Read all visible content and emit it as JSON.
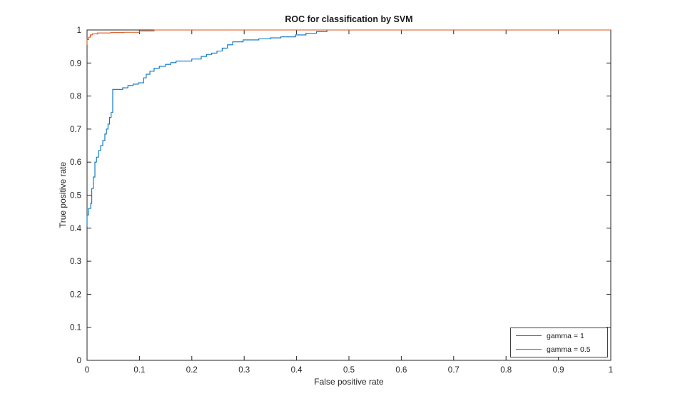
{
  "figure": {
    "background": "#ffffff",
    "axes_color": "#262626",
    "text_color": "#262626"
  },
  "chart_data": {
    "type": "line",
    "title": "ROC for classification by SVM",
    "xlabel": "False positive rate",
    "ylabel": "True positive rate",
    "xlim": [
      0,
      1
    ],
    "ylim": [
      0,
      1
    ],
    "grid": false,
    "x_ticks": [
      0,
      0.1,
      0.2,
      0.3,
      0.4,
      0.5,
      0.6,
      0.7,
      0.8,
      0.9,
      1
    ],
    "x_tick_labels": [
      "0",
      "0.1",
      "0.2",
      "0.3",
      "0.4",
      "0.5",
      "0.6",
      "0.7",
      "0.8",
      "0.9",
      "1"
    ],
    "y_ticks": [
      0,
      0.1,
      0.2,
      0.3,
      0.4,
      0.5,
      0.6,
      0.7,
      0.8,
      0.9,
      1
    ],
    "y_tick_labels": [
      "0",
      "0.1",
      "0.2",
      "0.3",
      "0.4",
      "0.5",
      "0.6",
      "0.7",
      "0.8",
      "0.9",
      "1"
    ],
    "legend": {
      "position": "southeast",
      "entries": [
        "gamma = 1",
        "gamma = 0.5"
      ]
    },
    "series": [
      {
        "name": "gamma = 1",
        "color": "#0072BD",
        "points": [
          [
            0,
            0.405
          ],
          [
            0,
            0.44
          ],
          [
            0.003,
            0.44
          ],
          [
            0.003,
            0.46
          ],
          [
            0.007,
            0.46
          ],
          [
            0.007,
            0.475
          ],
          [
            0.009,
            0.475
          ],
          [
            0.009,
            0.52
          ],
          [
            0.012,
            0.52
          ],
          [
            0.012,
            0.555
          ],
          [
            0.015,
            0.555
          ],
          [
            0.015,
            0.6
          ],
          [
            0.018,
            0.6
          ],
          [
            0.018,
            0.615
          ],
          [
            0.022,
            0.615
          ],
          [
            0.022,
            0.635
          ],
          [
            0.026,
            0.635
          ],
          [
            0.026,
            0.65
          ],
          [
            0.03,
            0.65
          ],
          [
            0.03,
            0.665
          ],
          [
            0.034,
            0.665
          ],
          [
            0.034,
            0.685
          ],
          [
            0.037,
            0.685
          ],
          [
            0.037,
            0.7
          ],
          [
            0.04,
            0.7
          ],
          [
            0.04,
            0.715
          ],
          [
            0.043,
            0.715
          ],
          [
            0.043,
            0.735
          ],
          [
            0.046,
            0.735
          ],
          [
            0.046,
            0.75
          ],
          [
            0.049,
            0.75
          ],
          [
            0.049,
            0.82
          ],
          [
            0.068,
            0.82
          ],
          [
            0.068,
            0.825
          ],
          [
            0.078,
            0.825
          ],
          [
            0.078,
            0.832
          ],
          [
            0.088,
            0.832
          ],
          [
            0.088,
            0.836
          ],
          [
            0.098,
            0.836
          ],
          [
            0.098,
            0.84
          ],
          [
            0.108,
            0.84
          ],
          [
            0.108,
            0.855
          ],
          [
            0.113,
            0.855
          ],
          [
            0.113,
            0.866
          ],
          [
            0.12,
            0.866
          ],
          [
            0.12,
            0.875
          ],
          [
            0.128,
            0.875
          ],
          [
            0.128,
            0.884
          ],
          [
            0.138,
            0.884
          ],
          [
            0.138,
            0.89
          ],
          [
            0.15,
            0.89
          ],
          [
            0.15,
            0.896
          ],
          [
            0.16,
            0.896
          ],
          [
            0.16,
            0.901
          ],
          [
            0.17,
            0.901
          ],
          [
            0.17,
            0.906
          ],
          [
            0.2,
            0.906
          ],
          [
            0.2,
            0.912
          ],
          [
            0.218,
            0.912
          ],
          [
            0.218,
            0.92
          ],
          [
            0.228,
            0.92
          ],
          [
            0.228,
            0.926
          ],
          [
            0.238,
            0.926
          ],
          [
            0.238,
            0.93
          ],
          [
            0.248,
            0.93
          ],
          [
            0.248,
            0.936
          ],
          [
            0.258,
            0.936
          ],
          [
            0.258,
            0.945
          ],
          [
            0.268,
            0.945
          ],
          [
            0.268,
            0.955
          ],
          [
            0.278,
            0.955
          ],
          [
            0.278,
            0.964
          ],
          [
            0.298,
            0.964
          ],
          [
            0.298,
            0.97
          ],
          [
            0.328,
            0.97
          ],
          [
            0.328,
            0.973
          ],
          [
            0.35,
            0.973
          ],
          [
            0.35,
            0.976
          ],
          [
            0.37,
            0.976
          ],
          [
            0.37,
            0.979
          ],
          [
            0.398,
            0.979
          ],
          [
            0.398,
            0.985
          ],
          [
            0.418,
            0.985
          ],
          [
            0.418,
            0.99
          ],
          [
            0.438,
            0.99
          ],
          [
            0.438,
            0.995
          ],
          [
            0.458,
            0.995
          ],
          [
            0.458,
            1
          ],
          [
            1,
            1
          ]
        ]
      },
      {
        "name": "gamma = 0.5",
        "color": "#D95319",
        "points": [
          [
            0,
            0.955
          ],
          [
            0,
            0.971
          ],
          [
            0.003,
            0.971
          ],
          [
            0.003,
            0.978
          ],
          [
            0.006,
            0.978
          ],
          [
            0.006,
            0.985
          ],
          [
            0.01,
            0.985
          ],
          [
            0.01,
            0.988
          ],
          [
            0.02,
            0.988
          ],
          [
            0.02,
            0.991
          ],
          [
            0.045,
            0.991
          ],
          [
            0.045,
            0.992
          ],
          [
            0.07,
            0.992
          ],
          [
            0.07,
            0.993
          ],
          [
            0.1,
            0.993
          ],
          [
            0.1,
            0.997
          ],
          [
            0.128,
            0.997
          ],
          [
            0.128,
            1
          ],
          [
            1,
            1
          ]
        ]
      }
    ]
  }
}
